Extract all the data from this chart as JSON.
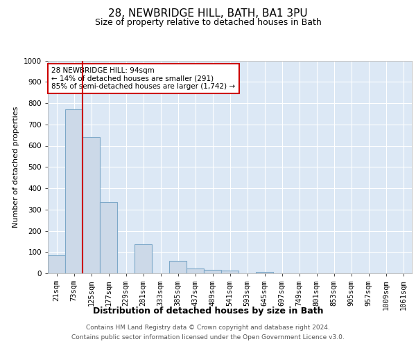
{
  "title1": "28, NEWBRIDGE HILL, BATH, BA1 3PU",
  "title2": "Size of property relative to detached houses in Bath",
  "xlabel": "Distribution of detached houses by size in Bath",
  "ylabel": "Number of detached properties",
  "categories": [
    "21sqm",
    "73sqm",
    "125sqm",
    "177sqm",
    "229sqm",
    "281sqm",
    "333sqm",
    "385sqm",
    "437sqm",
    "489sqm",
    "541sqm",
    "593sqm",
    "645sqm",
    "697sqm",
    "749sqm",
    "801sqm",
    "853sqm",
    "905sqm",
    "957sqm",
    "1009sqm",
    "1061sqm"
  ],
  "values": [
    85,
    770,
    640,
    335,
    0,
    135,
    0,
    60,
    22,
    15,
    14,
    0,
    8,
    0,
    0,
    0,
    0,
    0,
    0,
    0,
    0
  ],
  "bar_color": "#ccd9e8",
  "bar_edge_color": "#7da8c8",
  "vline_x_idx": 1,
  "vline_color": "#cc0000",
  "annotation_text": "28 NEWBRIDGE HILL: 94sqm\n← 14% of detached houses are smaller (291)\n85% of semi-detached houses are larger (1,742) →",
  "annotation_box_facecolor": "#ffffff",
  "annotation_box_edgecolor": "#cc0000",
  "ylim": [
    0,
    1000
  ],
  "yticks": [
    0,
    100,
    200,
    300,
    400,
    500,
    600,
    700,
    800,
    900,
    1000
  ],
  "footer1": "Contains HM Land Registry data © Crown copyright and database right 2024.",
  "footer2": "Contains public sector information licensed under the Open Government Licence v3.0.",
  "bg_color": "#ffffff",
  "plot_bg_color": "#dce8f5",
  "grid_color": "#ffffff",
  "title1_fontsize": 11,
  "title2_fontsize": 9,
  "ylabel_fontsize": 8,
  "xlabel_fontsize": 9,
  "tick_fontsize": 7.5,
  "footer_fontsize": 6.5,
  "footer_color": "#555555"
}
